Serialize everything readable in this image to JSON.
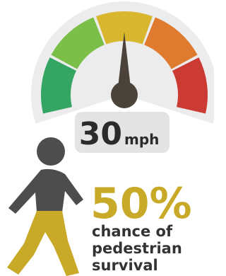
{
  "gauge": {
    "speed": "30",
    "unit": "mph"
  },
  "statistic": {
    "value": "50%",
    "caption": [
      "chance of",
      "pedestrian",
      "survival"
    ]
  }
}
